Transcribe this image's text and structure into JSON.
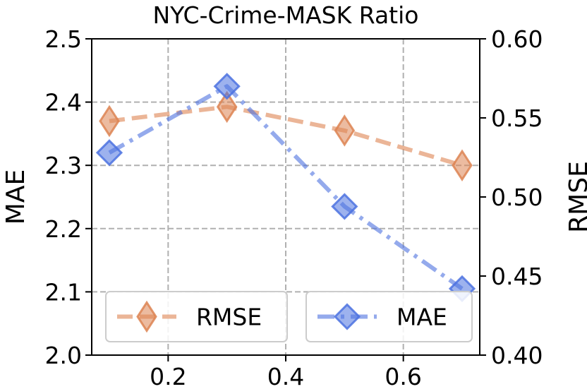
{
  "chart_data": {
    "type": "line",
    "title": "NYC-Crime-MASK Ratio",
    "xlabel": "",
    "ylabel_left": "MAE",
    "ylabel_right": "RMSE",
    "x": [
      0.1,
      0.3,
      0.5,
      0.7
    ],
    "xlim": [
      0.07,
      0.73
    ],
    "xticks": [
      0.2,
      0.4,
      0.6
    ],
    "xtick_labels": [
      "0.2",
      "0.4",
      "0.6"
    ],
    "ylim_left": [
      2.0,
      2.5
    ],
    "yticks_left": [
      2.0,
      2.1,
      2.2,
      2.3,
      2.4,
      2.5
    ],
    "ytick_labels_left": [
      "2.0",
      "2.1",
      "2.2",
      "2.3",
      "2.4",
      "2.5"
    ],
    "ylim_right": [
      0.4,
      0.6
    ],
    "yticks_right": [
      0.4,
      0.45,
      0.5,
      0.55,
      0.6
    ],
    "ytick_labels_right": [
      "0.40",
      "0.45",
      "0.50",
      "0.55",
      "0.60"
    ],
    "grid": true,
    "legend_placement": "bottom",
    "series": [
      {
        "name": "RMSE",
        "axis": "right",
        "values": [
          0.548,
          0.557,
          0.542,
          0.52
        ],
        "color": "#dd8452",
        "line_style": "dashed",
        "marker": "thin-diamond"
      },
      {
        "name": "MAE",
        "axis": "left",
        "values": [
          2.32,
          2.425,
          2.235,
          2.105
        ],
        "color": "#4c72e0",
        "line_style": "dash-dot",
        "marker": "diamond"
      }
    ]
  }
}
